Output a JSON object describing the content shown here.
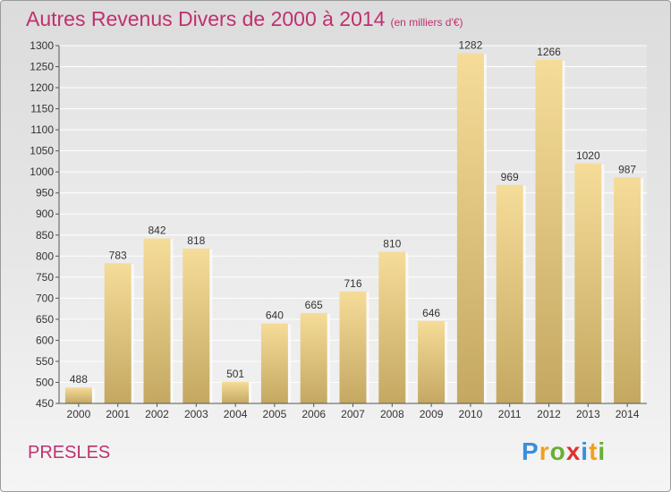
{
  "header": {
    "title": "Autres Revenus Divers de 2000 à 2014",
    "unit": "(en milliers d'€)"
  },
  "footer": {
    "location": "PRESLES",
    "brand_letters": [
      "P",
      "r",
      "o",
      "x",
      "i",
      "t",
      "i"
    ],
    "brand_colors": [
      "#3a8fd8",
      "#f0a020",
      "#66b030",
      "#e03030",
      "#3a8fd8",
      "#f0a020",
      "#66b030"
    ]
  },
  "chart_data": {
    "type": "bar",
    "title": "Autres Revenus Divers de 2000 à 2014",
    "subtitle": "(en milliers d'€)",
    "categories": [
      "2000",
      "2001",
      "2002",
      "2003",
      "2004",
      "2005",
      "2006",
      "2007",
      "2008",
      "2009",
      "2010",
      "2011",
      "2012",
      "2013",
      "2014"
    ],
    "values": [
      488,
      783,
      842,
      818,
      501,
      640,
      665,
      716,
      810,
      646,
      1282,
      969,
      1266,
      1020,
      987
    ],
    "ylim": [
      450,
      1300
    ],
    "yticks": [
      450,
      500,
      550,
      600,
      650,
      700,
      750,
      800,
      850,
      900,
      950,
      1000,
      1050,
      1100,
      1150,
      1200,
      1250,
      1300
    ],
    "grid": true,
    "bar_colors": {
      "top": "#f5dc98",
      "bottom": "#c4a862"
    }
  }
}
